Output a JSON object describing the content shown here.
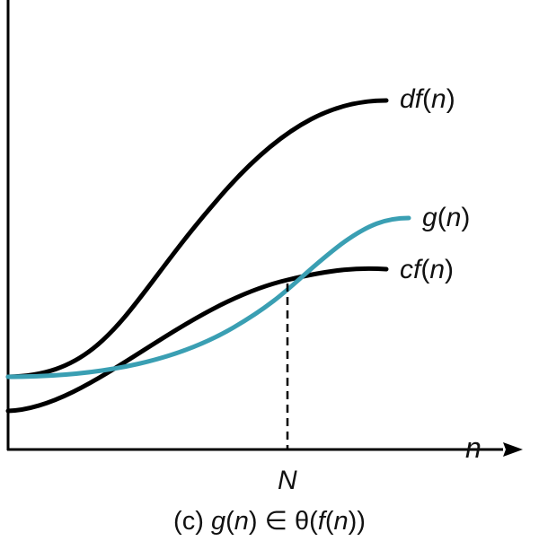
{
  "colors": {
    "axis": "#000000",
    "bound_curves": "#000000",
    "g_curve": "#3a9fb3",
    "text": "#111111"
  },
  "curves": {
    "upper": {
      "func": "df",
      "arg": "n"
    },
    "middle": {
      "func": "g",
      "arg": "n"
    },
    "lower": {
      "func": "cf",
      "arg": "n"
    }
  },
  "axes": {
    "x_var": "n",
    "threshold_tick": "N"
  },
  "caption": {
    "tag": "(c)",
    "lhs_func": "g",
    "lhs_arg": "n",
    "relation": "∈",
    "theta": "θ",
    "rhs_func": "f",
    "rhs_arg": "n"
  }
}
